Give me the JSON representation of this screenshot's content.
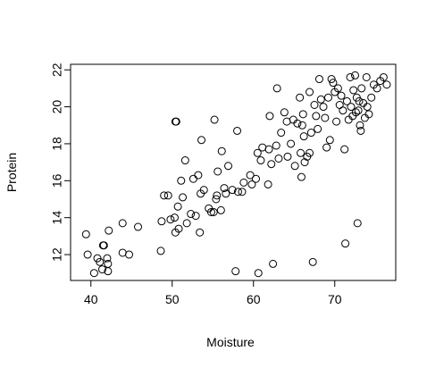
{
  "chart_data": {
    "type": "scatter",
    "title": "",
    "xlabel": "Moisture",
    "ylabel": "Protein",
    "xlim": [
      37.5,
      77.5
    ],
    "ylim": [
      10.6,
      22.3
    ],
    "xticks": [
      40,
      50,
      60,
      70
    ],
    "yticks": [
      12,
      14,
      16,
      18,
      20,
      22
    ],
    "grid": false,
    "legend": "none",
    "marker": "open-circle",
    "colors": {
      "point": "#000000",
      "axis": "#000000",
      "background": "#ffffff"
    },
    "points": [
      [
        39.4,
        13.1
      ],
      [
        39.6,
        12.0
      ],
      [
        40.4,
        11.0
      ],
      [
        40.8,
        11.8
      ],
      [
        41.1,
        11.6
      ],
      [
        41.4,
        11.2
      ],
      [
        41.5,
        12.5
      ],
      [
        41.6,
        12.5
      ],
      [
        42.0,
        11.8
      ],
      [
        42.1,
        11.5
      ],
      [
        42.1,
        11.1
      ],
      [
        42.2,
        13.3
      ],
      [
        43.9,
        12.1
      ],
      [
        43.9,
        13.7
      ],
      [
        44.7,
        12.0
      ],
      [
        45.8,
        13.5
      ],
      [
        48.6,
        12.2
      ],
      [
        48.7,
        13.8
      ],
      [
        49.0,
        15.2
      ],
      [
        49.5,
        15.2
      ],
      [
        49.8,
        13.9
      ],
      [
        50.3,
        14.0
      ],
      [
        50.4,
        13.2
      ],
      [
        50.7,
        14.6
      ],
      [
        50.8,
        13.4
      ],
      [
        51.1,
        16.0
      ],
      [
        51.3,
        15.1
      ],
      [
        51.6,
        17.1
      ],
      [
        51.8,
        13.7
      ],
      [
        52.3,
        14.2
      ],
      [
        52.6,
        16.1
      ],
      [
        52.9,
        14.1
      ],
      [
        53.2,
        16.3
      ],
      [
        53.5,
        15.3
      ],
      [
        53.4,
        13.2
      ],
      [
        53.6,
        18.2
      ],
      [
        53.9,
        15.5
      ],
      [
        54.5,
        14.5
      ],
      [
        54.8,
        14.3
      ],
      [
        55.1,
        14.3
      ],
      [
        50.4,
        19.2
      ],
      [
        50.5,
        19.2
      ],
      [
        55.2,
        19.3
      ],
      [
        58.0,
        18.7
      ],
      [
        55.4,
        15.0
      ],
      [
        55.6,
        16.5
      ],
      [
        55.5,
        15.2
      ],
      [
        56.0,
        14.4
      ],
      [
        56.1,
        17.6
      ],
      [
        56.4,
        15.6
      ],
      [
        56.6,
        15.3
      ],
      [
        56.9,
        16.8
      ],
      [
        57.4,
        15.5
      ],
      [
        57.8,
        11.1
      ],
      [
        58.1,
        15.4
      ],
      [
        58.6,
        15.4
      ],
      [
        58.8,
        15.9
      ],
      [
        59.6,
        16.3
      ],
      [
        59.8,
        15.8
      ],
      [
        60.3,
        16.1
      ],
      [
        60.5,
        17.5
      ],
      [
        60.6,
        11.0
      ],
      [
        60.9,
        17.1
      ],
      [
        61.1,
        17.8
      ],
      [
        61.8,
        15.8
      ],
      [
        61.9,
        17.7
      ],
      [
        62.0,
        19.5
      ],
      [
        62.2,
        16.9
      ],
      [
        62.4,
        11.5
      ],
      [
        62.8,
        17.9
      ],
      [
        62.9,
        21.0
      ],
      [
        63.1,
        17.2
      ],
      [
        63.4,
        18.6
      ],
      [
        63.8,
        19.7
      ],
      [
        64.1,
        19.2
      ],
      [
        64.2,
        17.3
      ],
      [
        64.6,
        18.0
      ],
      [
        64.9,
        19.3
      ],
      [
        65.1,
        16.8
      ],
      [
        65.4,
        19.1
      ],
      [
        65.7,
        20.5
      ],
      [
        65.8,
        17.5
      ],
      [
        65.9,
        16.2
      ],
      [
        66.0,
        19.0
      ],
      [
        66.1,
        19.6
      ],
      [
        66.2,
        18.4
      ],
      [
        66.3,
        17.0
      ],
      [
        66.6,
        17.3
      ],
      [
        66.9,
        17.5
      ],
      [
        66.9,
        20.8
      ],
      [
        67.1,
        18.6
      ],
      [
        67.3,
        11.6
      ],
      [
        67.5,
        20.1
      ],
      [
        67.7,
        19.5
      ],
      [
        67.9,
        18.8
      ],
      [
        68.1,
        21.5
      ],
      [
        68.3,
        20.4
      ],
      [
        68.6,
        20.0
      ],
      [
        68.8,
        19.4
      ],
      [
        69.0,
        17.8
      ],
      [
        69.2,
        20.5
      ],
      [
        69.4,
        18.2
      ],
      [
        69.6,
        21.5
      ],
      [
        69.8,
        21.3
      ],
      [
        70.0,
        20.8
      ],
      [
        70.2,
        19.2
      ],
      [
        70.4,
        21.0
      ],
      [
        70.6,
        20.1
      ],
      [
        70.8,
        20.6
      ],
      [
        71.0,
        19.8
      ],
      [
        71.2,
        17.7
      ],
      [
        71.3,
        12.6
      ],
      [
        71.5,
        20.3
      ],
      [
        71.7,
        19.3
      ],
      [
        71.9,
        21.6
      ],
      [
        72.0,
        20.0
      ],
      [
        72.2,
        19.5
      ],
      [
        72.3,
        20.9
      ],
      [
        72.5,
        21.7
      ],
      [
        72.6,
        19.7
      ],
      [
        72.7,
        20.5
      ],
      [
        72.8,
        13.7
      ],
      [
        72.9,
        19.8
      ],
      [
        73.0,
        20.3
      ],
      [
        73.1,
        19.0
      ],
      [
        73.2,
        18.7
      ],
      [
        73.3,
        21.0
      ],
      [
        73.5,
        20.2
      ],
      [
        73.7,
        19.4
      ],
      [
        73.9,
        21.6
      ],
      [
        74.0,
        20.0
      ],
      [
        74.2,
        19.6
      ],
      [
        74.5,
        20.5
      ],
      [
        74.8,
        21.2
      ],
      [
        75.2,
        21.0
      ],
      [
        75.6,
        21.4
      ],
      [
        76.0,
        21.6
      ],
      [
        76.4,
        21.2
      ]
    ]
  }
}
